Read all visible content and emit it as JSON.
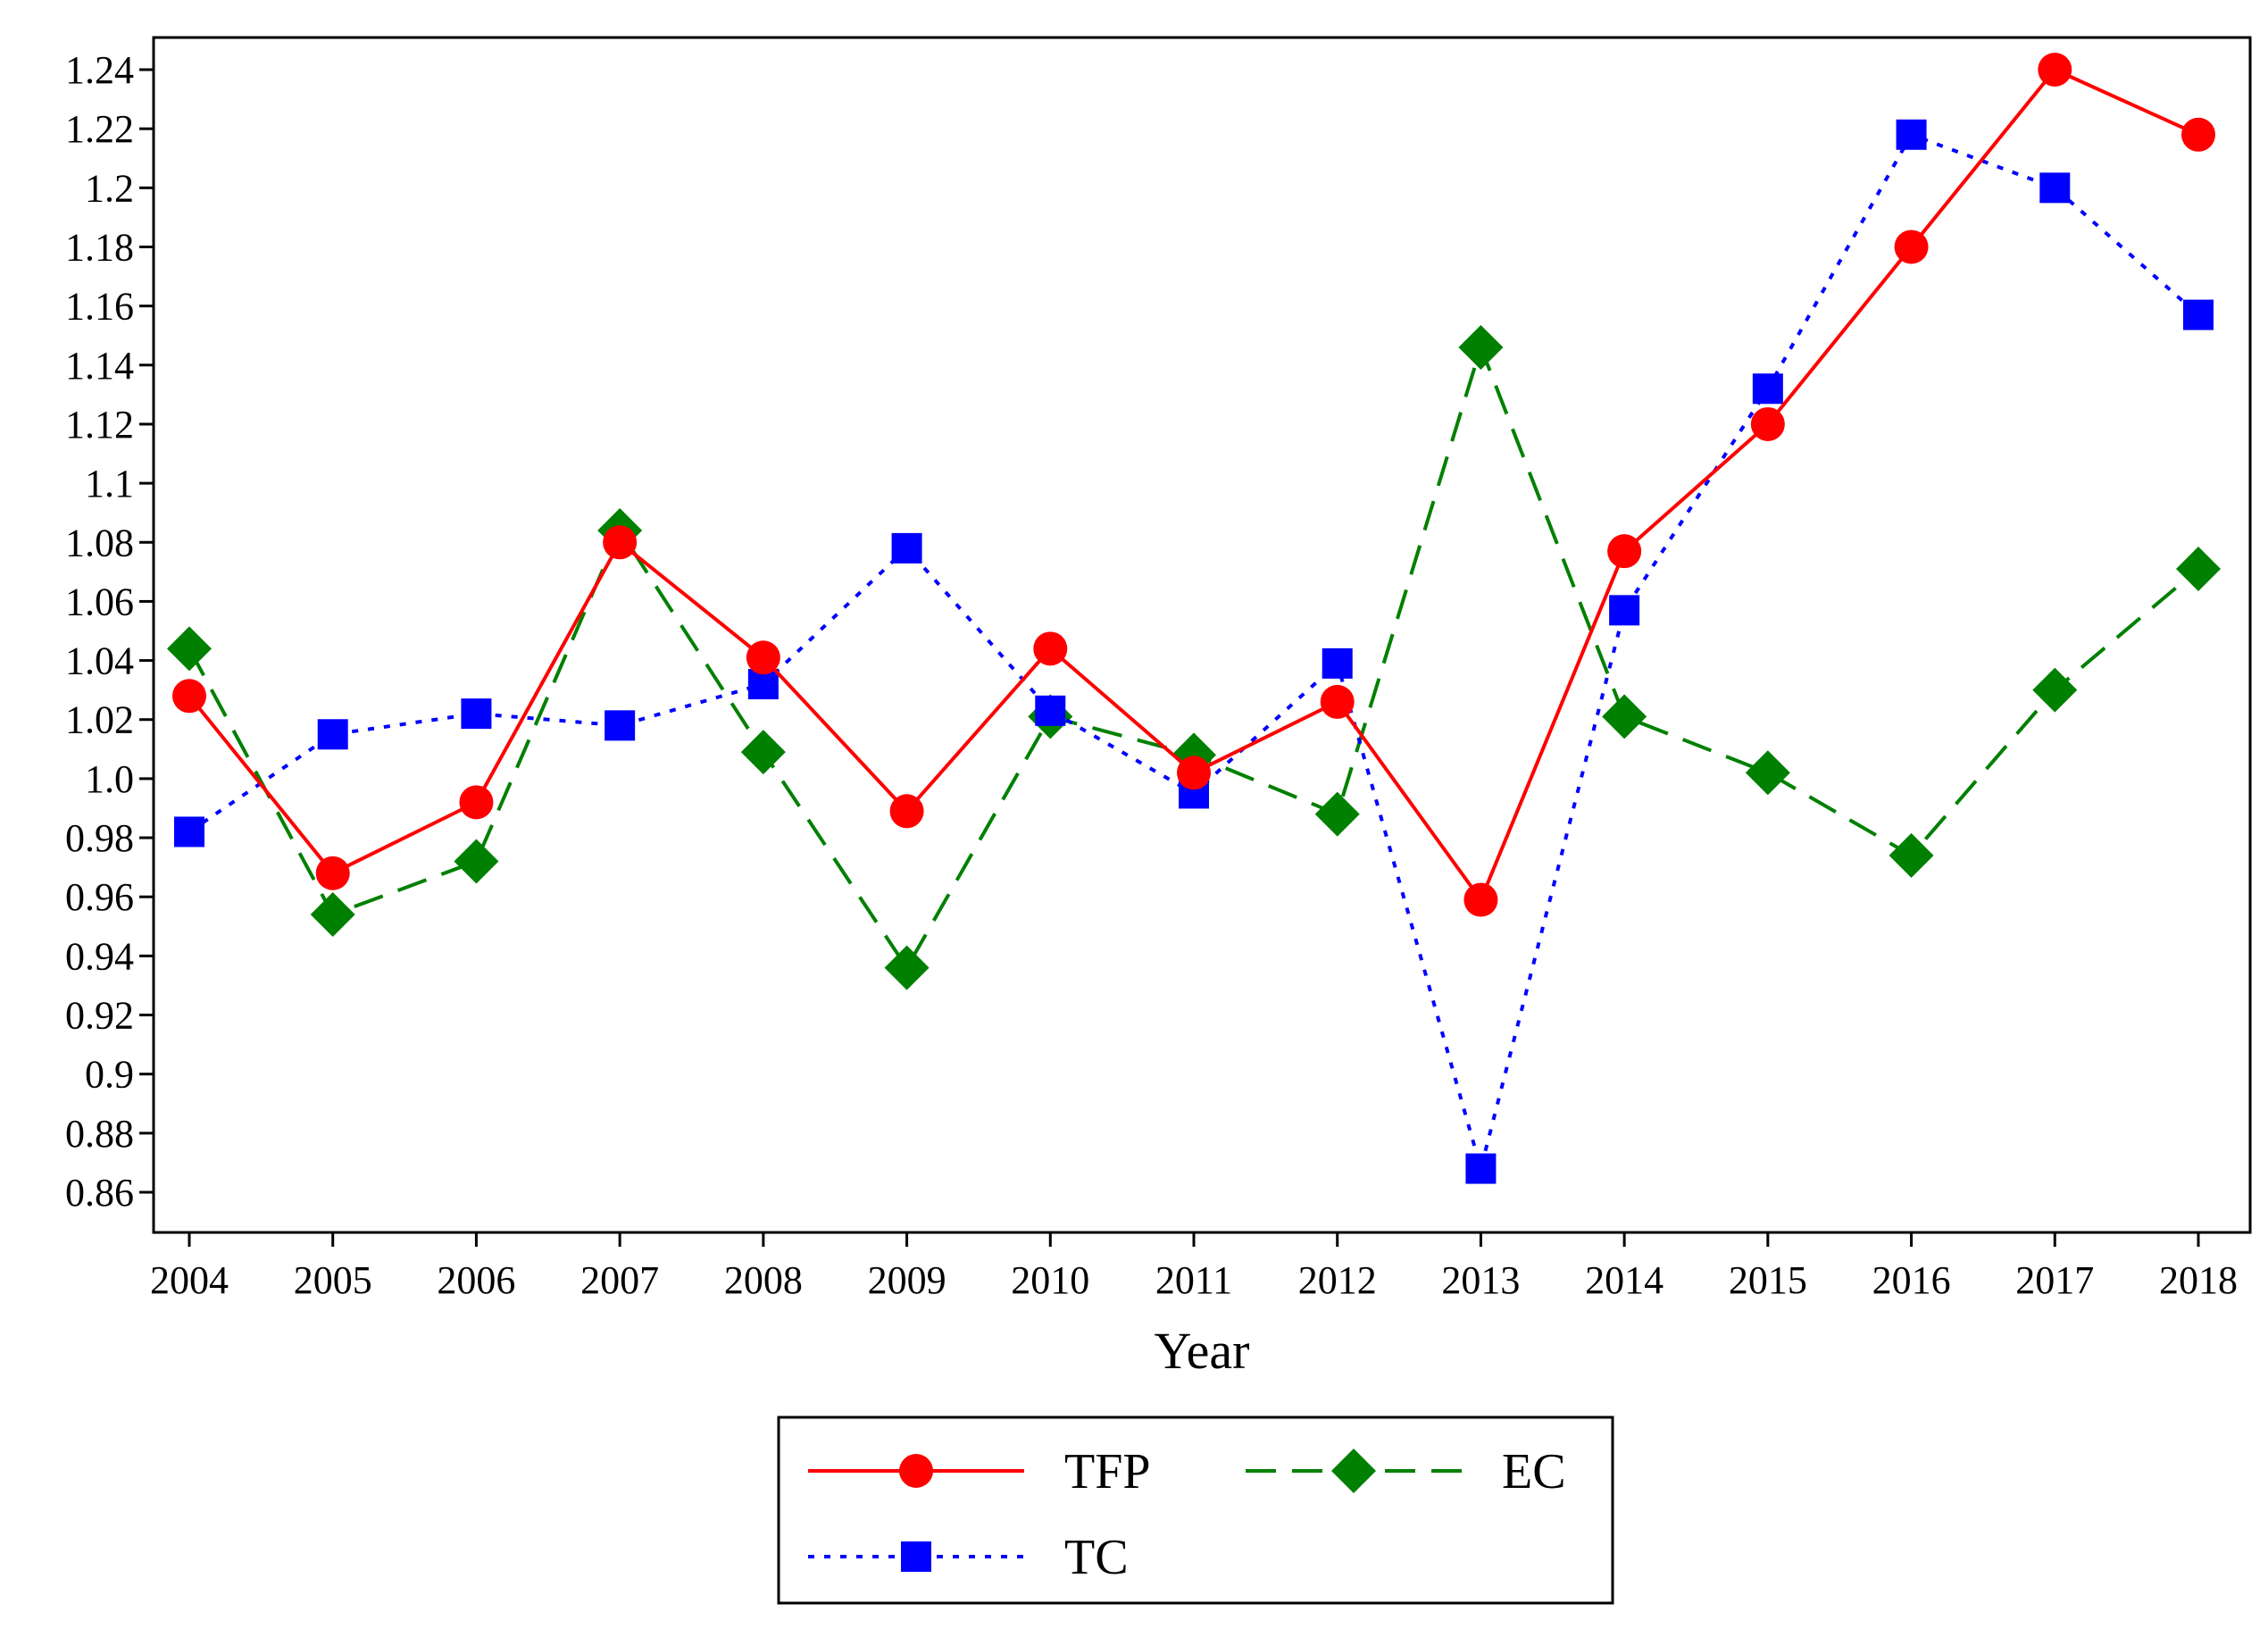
{
  "chart_data": {
    "type": "line",
    "title": "",
    "xlabel": "Year",
    "ylabel": "",
    "categories": [
      "2004",
      "2005",
      "2006",
      "2007",
      "2008",
      "2009",
      "2010",
      "2011",
      "2012",
      "2013",
      "2014",
      "2015",
      "2016",
      "2017",
      "2018"
    ],
    "ylim": [
      0.85,
      1.25
    ],
    "yticks": [
      0.86,
      0.88,
      0.9,
      0.92,
      0.94,
      0.96,
      0.98,
      1.0,
      1.02,
      1.04,
      1.06,
      1.08,
      1.1,
      1.12,
      1.14,
      1.16,
      1.18,
      1.2,
      1.22,
      1.24
    ],
    "ytick_labels": [
      "0.86",
      "0.88",
      "0.9",
      "0.92",
      "0.94",
      "0.96",
      "0.98",
      "1.0",
      "1.02",
      "1.04",
      "1.06",
      "1.08",
      "1.1",
      "1.12",
      "1.14",
      "1.16",
      "1.18",
      "1.2",
      "1.22",
      "1.24"
    ],
    "grid": false,
    "legend_position": "bottom-center",
    "series": [
      {
        "name": "TFP",
        "color": "#ff0000",
        "line_style": "solid",
        "marker": "circle",
        "values": [
          1.028,
          0.968,
          0.992,
          1.08,
          1.041,
          0.989,
          1.044,
          1.002,
          1.026,
          0.959,
          1.077,
          1.12,
          1.18,
          1.24,
          1.218
        ]
      },
      {
        "name": "EC",
        "color": "#008000",
        "line_style": "dashed",
        "marker": "diamond",
        "values": [
          1.044,
          0.954,
          0.972,
          1.084,
          1.009,
          0.936,
          1.021,
          1.008,
          0.988,
          1.146,
          1.021,
          1.002,
          0.974,
          1.03,
          1.071
        ]
      },
      {
        "name": "TC",
        "color": "#0000ff",
        "line_style": "dotted",
        "marker": "square",
        "values": [
          0.982,
          1.015,
          1.022,
          1.018,
          1.032,
          1.078,
          1.023,
          0.995,
          1.039,
          0.868,
          1.057,
          1.132,
          1.218,
          1.2,
          1.157
        ]
      }
    ]
  }
}
